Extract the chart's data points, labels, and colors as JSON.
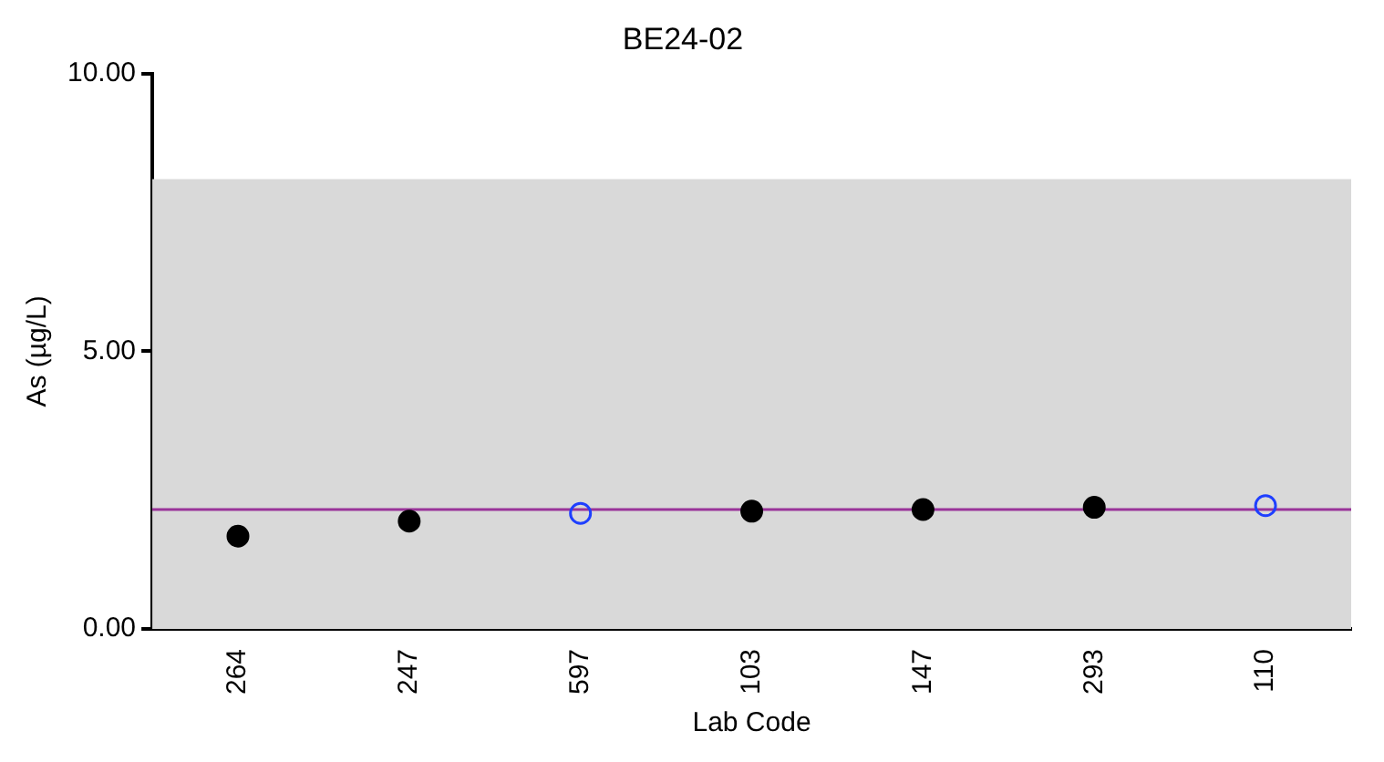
{
  "chart_data": {
    "type": "scatter",
    "title": "BE24-02",
    "xlabel": "Lab Code",
    "ylabel": "As (µg/L)",
    "categories": [
      "264",
      "247",
      "597",
      "103",
      "147",
      "293",
      "110"
    ],
    "series": [
      {
        "color": "#000000",
        "values": [
          1.67,
          1.94,
          null,
          2.12,
          2.15,
          2.19,
          null
        ]
      },
      {
        "color": "#1f3fff",
        "values": [
          null,
          null,
          2.08,
          null,
          null,
          null,
          2.22
        ]
      }
    ],
    "ylim": [
      0,
      10
    ],
    "yticks": [
      {
        "value": 0,
        "label": "0.00"
      },
      {
        "value": 5,
        "label": "5.00"
      },
      {
        "value": 10,
        "label": "10.00"
      }
    ],
    "bands": [
      {
        "axis": "y",
        "from": 0,
        "to": 8.1,
        "color": "#d9d9d9"
      }
    ],
    "ref_lines": [
      {
        "axis": "y",
        "value": 2.15,
        "color": "#993399"
      }
    ],
    "marker": "circle",
    "grid": false,
    "legend": false
  }
}
